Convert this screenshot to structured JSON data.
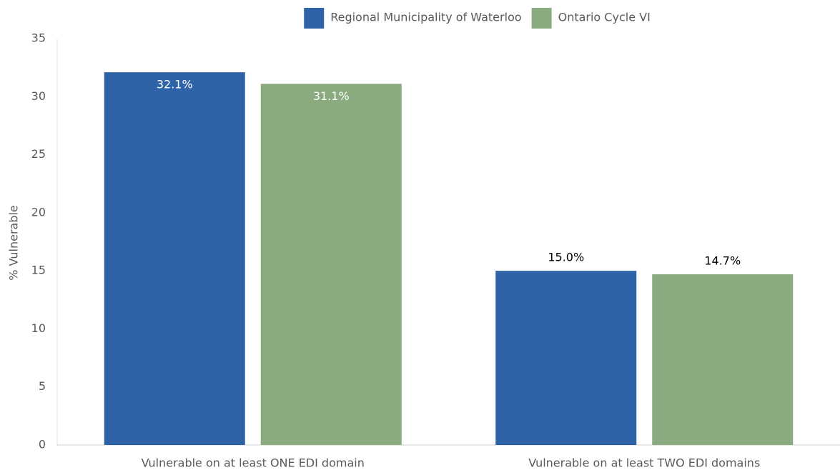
{
  "chart_data": {
    "type": "bar",
    "categories": [
      "Vulnerable on at least ONE EDI domain",
      "Vulnerable on at least TWO EDI domains"
    ],
    "series": [
      {
        "name": "Regional Municipality of Waterloo",
        "color": "#2e64a7",
        "values": [
          32.1,
          15.0
        ],
        "value_labels": [
          "32.1%",
          "15.0%"
        ]
      },
      {
        "name": "Ontario Cycle VI",
        "color": "#8aaa80",
        "values": [
          31.1,
          14.7
        ],
        "value_labels": [
          "31.1%",
          "14.7%"
        ]
      }
    ],
    "ylabel": "% Vulnerable",
    "ylim": [
      0,
      35
    ],
    "yticks": [
      0,
      5,
      10,
      15,
      20,
      25,
      30,
      35
    ],
    "grid": false,
    "legend": "top"
  }
}
